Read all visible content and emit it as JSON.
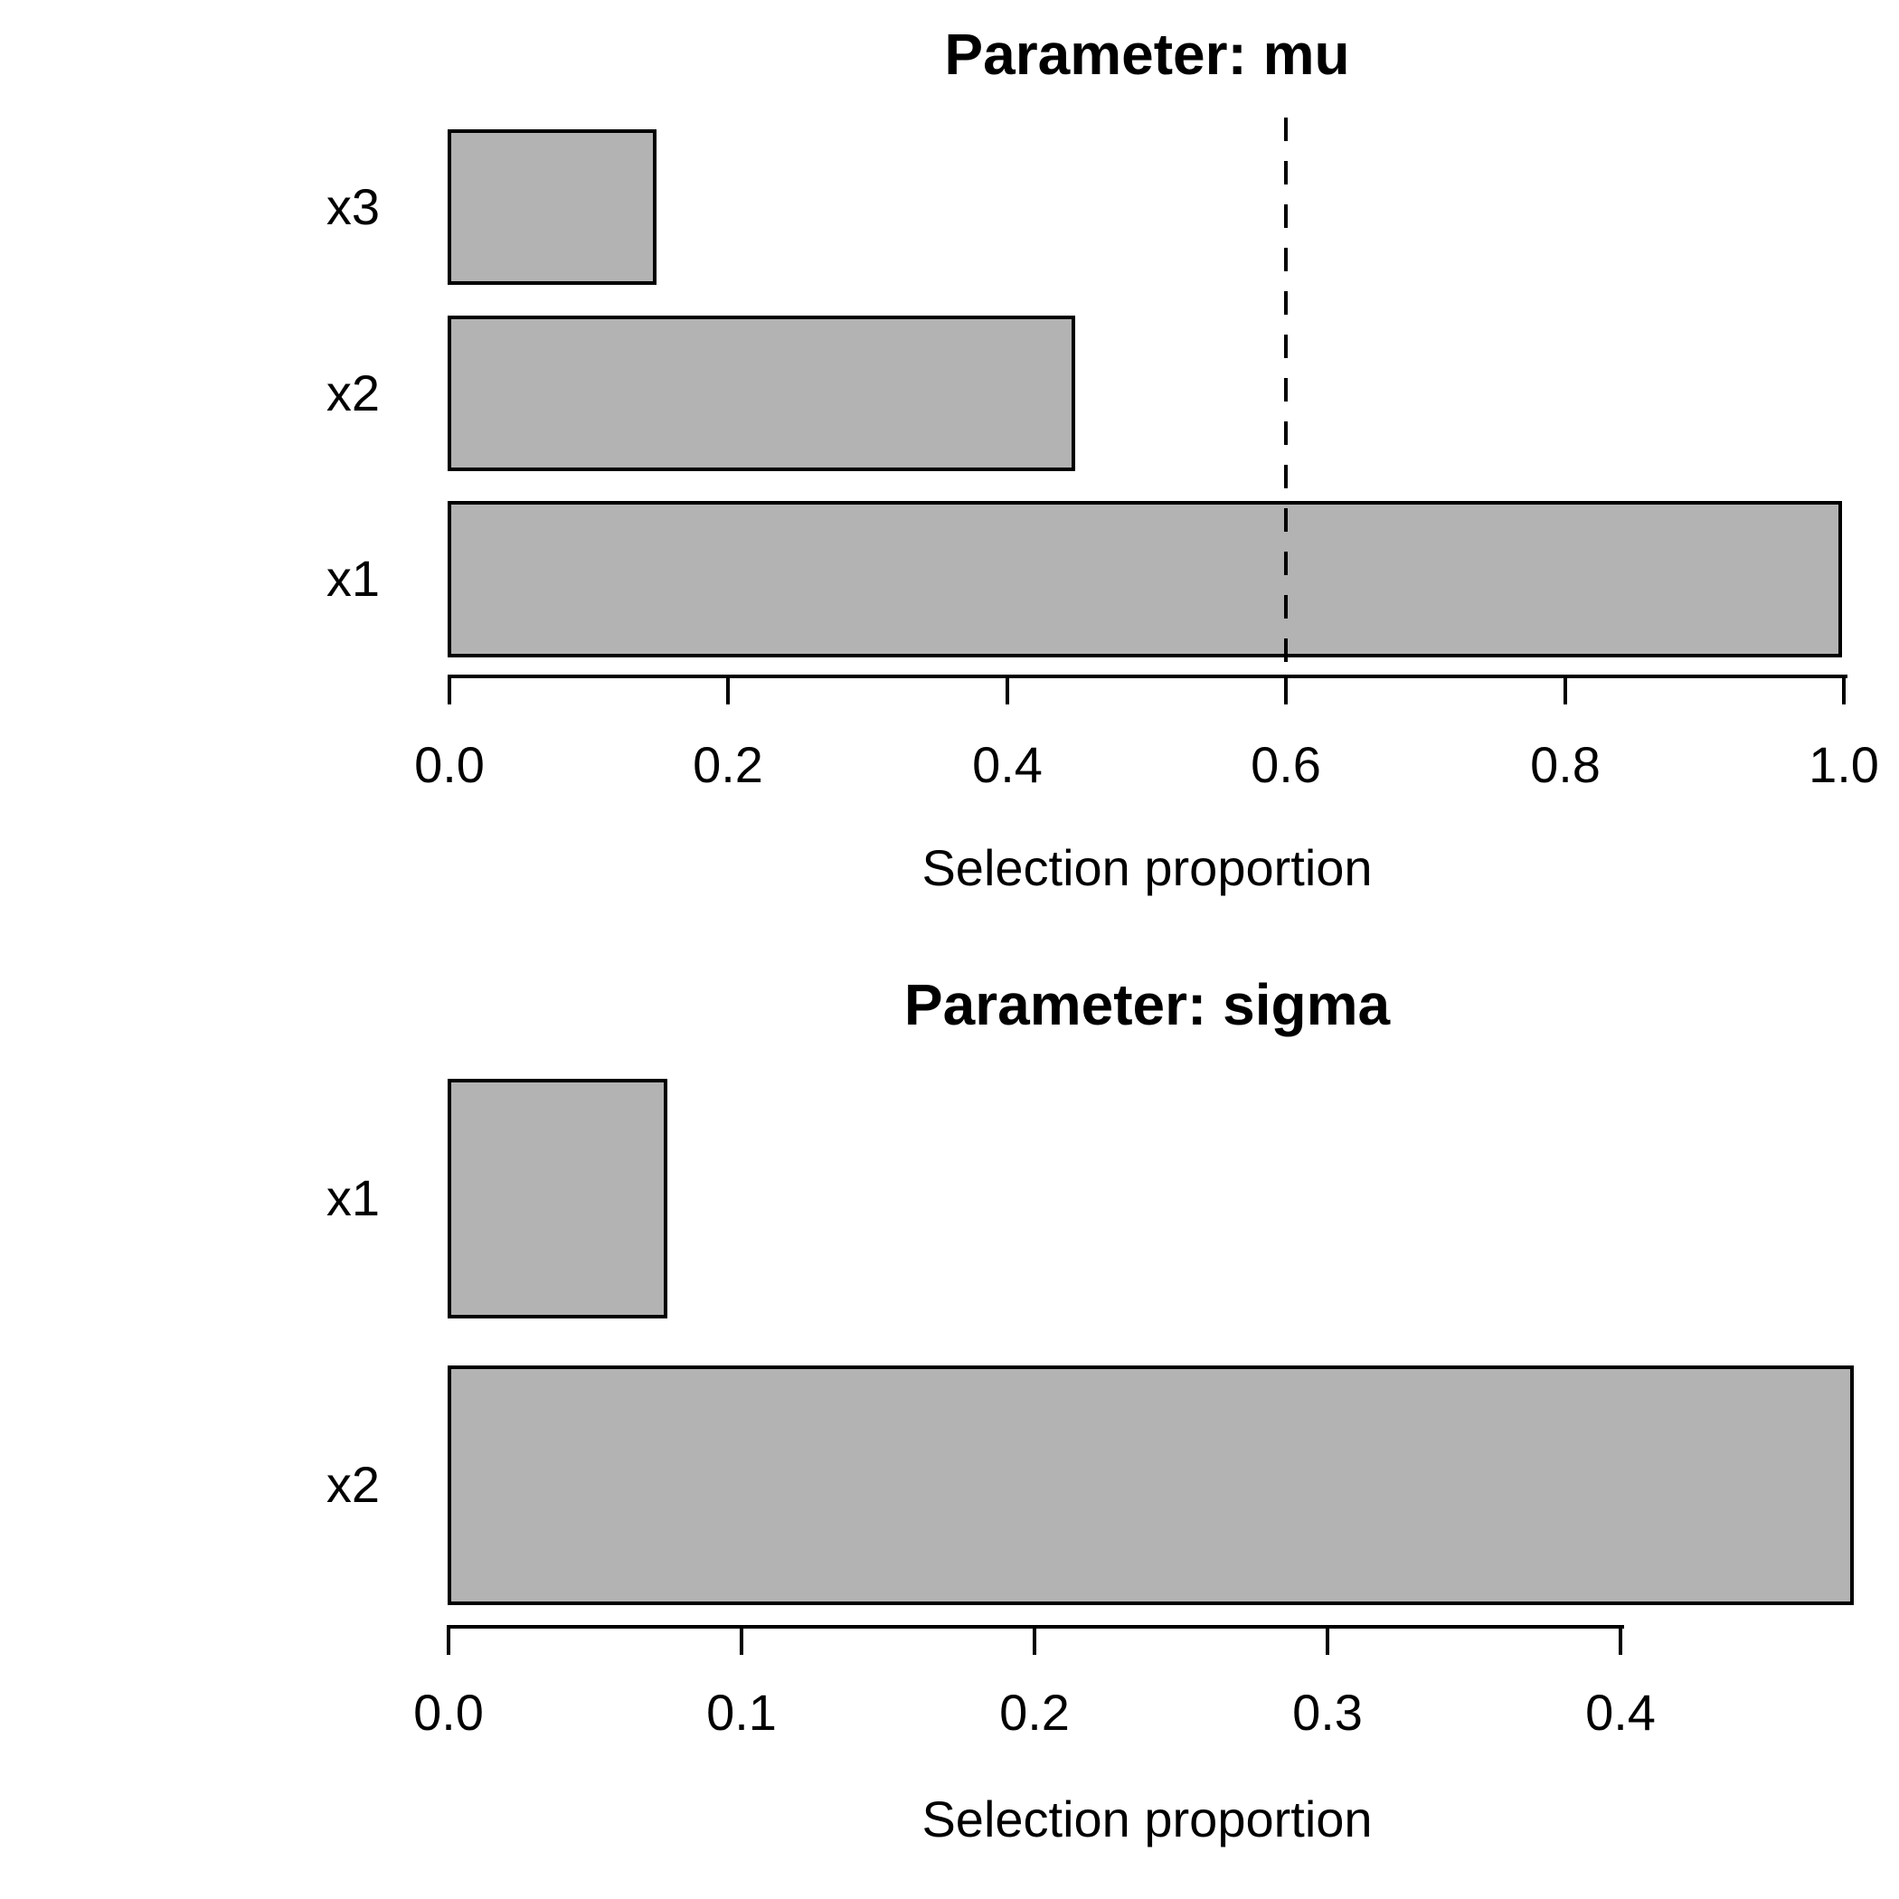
{
  "figure": {
    "background": "#ffffff",
    "text_color": "#000000",
    "panel_count": 2
  },
  "chart_data": [
    {
      "type": "bar",
      "orientation": "horizontal",
      "title": "Parameter: mu",
      "xlabel": "Selection proportion",
      "categories": [
        "x3",
        "x2",
        "x1"
      ],
      "categories_order": "top_to_bottom",
      "values": [
        0.15,
        0.45,
        1.0
      ],
      "xticks": [
        0.0,
        0.2,
        0.4,
        0.6,
        0.8,
        1.0
      ],
      "xtick_labels": [
        "0.0",
        "0.2",
        "0.4",
        "0.6",
        "0.8",
        "1.0"
      ],
      "xlim": [
        0,
        1.0
      ],
      "threshold_line_x": 0.6,
      "threshold_line_style": "dashed",
      "grid": "off",
      "legend": "none",
      "bar_fill": "#b3b3b3",
      "bar_border": "#000000",
      "line_color": "#000000"
    },
    {
      "type": "bar",
      "orientation": "horizontal",
      "title": "Parameter: sigma",
      "xlabel": "Selection proportion",
      "categories": [
        "x1",
        "x2"
      ],
      "categories_order": "top_to_bottom",
      "values": [
        0.075,
        0.48
      ],
      "xticks": [
        0.0,
        0.1,
        0.2,
        0.3,
        0.4
      ],
      "xtick_labels": [
        "0.0",
        "0.1",
        "0.2",
        "0.3",
        "0.4"
      ],
      "xlim": [
        0,
        0.48
      ],
      "threshold_line_x": null,
      "grid": "off",
      "legend": "none",
      "bar_fill": "#b3b3b3",
      "bar_border": "#000000",
      "line_color": "#000000"
    }
  ]
}
